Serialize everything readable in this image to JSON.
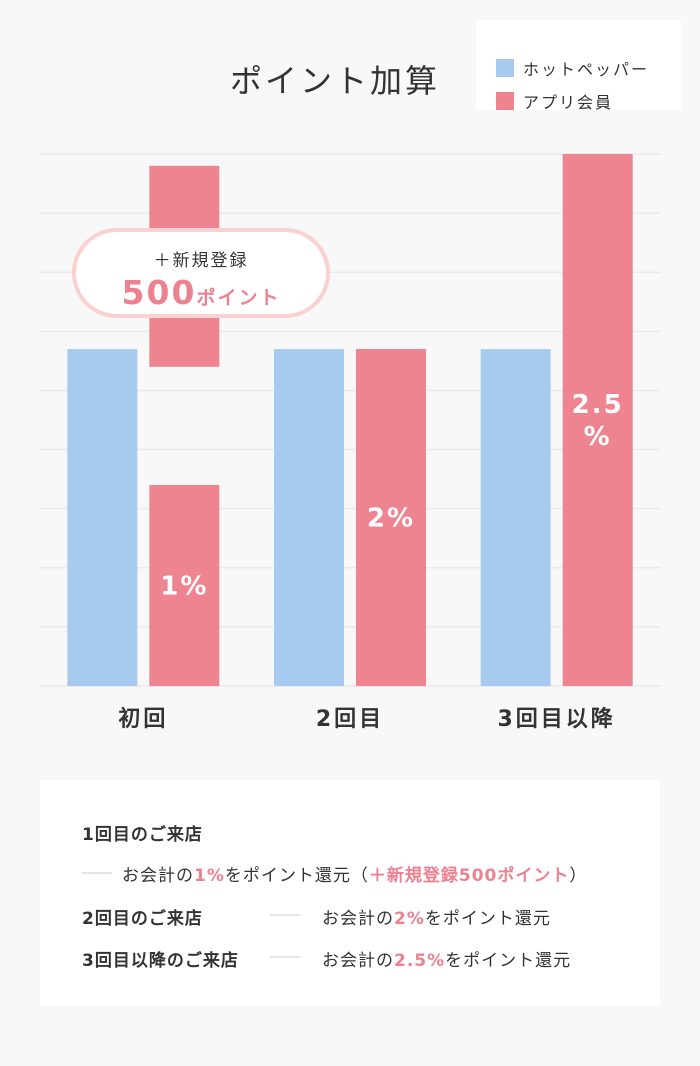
{
  "chart_data": {
    "type": "bar",
    "title": "ポイント加算",
    "categories": [
      "初回",
      "2回目",
      "3回目以降"
    ],
    "ylim": [
      0,
      9
    ],
    "grid": true,
    "legend_position": "top-right",
    "series": [
      {
        "name": "ホットペッパー",
        "color": "#a7cbef",
        "values": [
          5.7,
          5.7,
          5.7
        ],
        "labels": [
          "",
          "",
          ""
        ]
      },
      {
        "name": "アプリ会員",
        "color": "#ee8490",
        "values": [
          3.4,
          5.7,
          9
        ],
        "labels": [
          "1%",
          "2%",
          "2.5\n%"
        ]
      }
    ],
    "bonus": {
      "category_index": 0,
      "series_index": 1,
      "range": [
        5.4,
        8.8
      ],
      "line1": "＋新規登録",
      "points": "500",
      "unit": "ポイント"
    }
  },
  "notes": {
    "first_head": "1回目のご来店",
    "first_text_pre": "お会計の",
    "first_rate": "1%",
    "first_text_mid": "をポイント還元（",
    "first_bonus": "＋新規登録500ポイント",
    "first_text_post": "）",
    "second_head": "2回目のご来店",
    "second_text_pre": "お会計の",
    "second_rate": "2%",
    "second_text_post": "をポイント還元",
    "third_head": "3回目以降のご来店",
    "third_text_pre": "お会計の",
    "third_rate": "2.5%",
    "third_text_post": "をポイント還元"
  }
}
